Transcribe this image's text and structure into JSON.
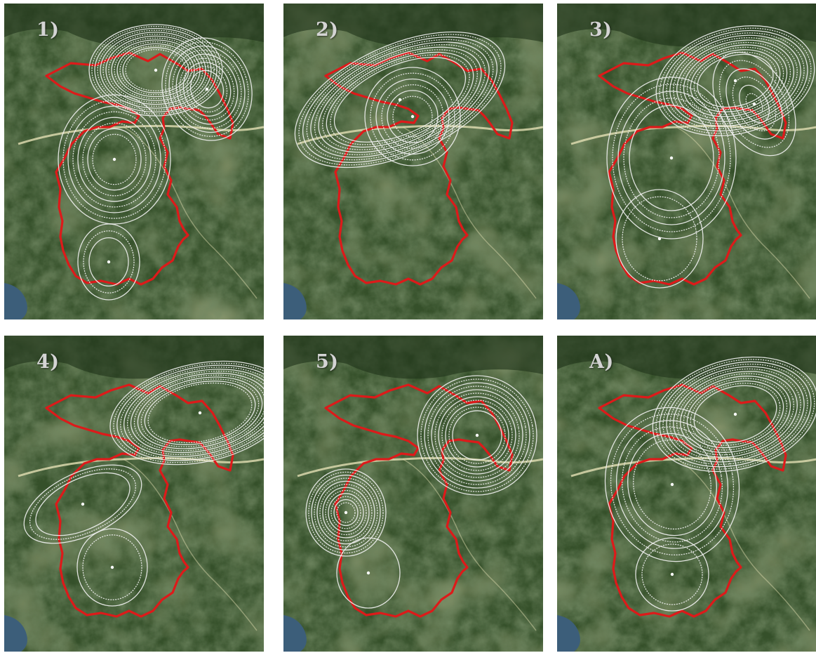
{
  "panels": [
    {
      "label": "1)"
    },
    {
      "label": "2)"
    },
    {
      "label": "3)"
    },
    {
      "label": "4)"
    },
    {
      "label": "5)"
    },
    {
      "label": "A)"
    }
  ],
  "colors": {
    "boundary": "#dd1a1a",
    "contour": "#f2f2f2",
    "forest_dark": "#22351c",
    "forest": "#35502a",
    "meadow": "#6f7a45",
    "valley_road": "#e4e0b4",
    "lake": "#3c5e7a"
  },
  "map": {
    "boundary_color_name": "red",
    "contour_color_name": "white"
  }
}
